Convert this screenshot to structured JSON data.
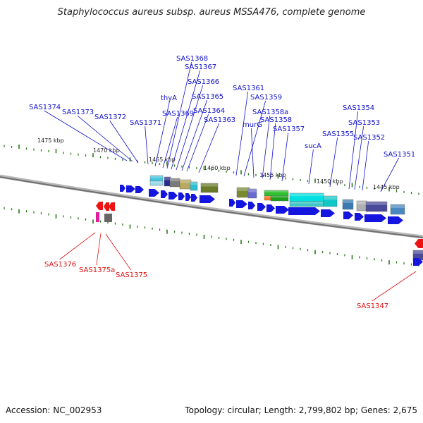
{
  "title": "Staphylococcus aureus subsp. aureus MSSA476, complete genome",
  "footer": {
    "accession": "Accession: NC_002953",
    "summary": "Topology: circular; Length: 2,799,802 bp; Genes: 2,675"
  },
  "colors": {
    "forward_label": "#1010cc",
    "reverse_label": "#dd1111",
    "arrow_blue": "#1515e0",
    "arrow_red": "#ee1111",
    "tick_green": "#2a7a1a",
    "backbone": "#888888"
  },
  "chart_data": {
    "type": "genome-map",
    "scale_labels": [
      "1475 kbp",
      "1470 kbp",
      "1465 kbp",
      "1460 kbp",
      "1455 kbp",
      "1450 kbp",
      "1445 kbp"
    ],
    "forward_labels": [
      "SAS1374",
      "SAS1373",
      "SAS1372",
      "SAS1371",
      "thyA",
      "SAS1369",
      "SAS1368",
      "SAS1367",
      "SAS1366",
      "SAS1365",
      "SAS1364",
      "SAS1363",
      "SAS1361",
      "SAS1359",
      "murG",
      "SAS1358a",
      "SAS1358",
      "SAS1357",
      "sucA",
      "SAS1355",
      "SAS1354",
      "SAS1353",
      "SAS1352",
      "SAS1351"
    ],
    "reverse_labels": [
      "SAS1376",
      "SAS1375a",
      "SAS1375",
      "SAS1347"
    ]
  }
}
